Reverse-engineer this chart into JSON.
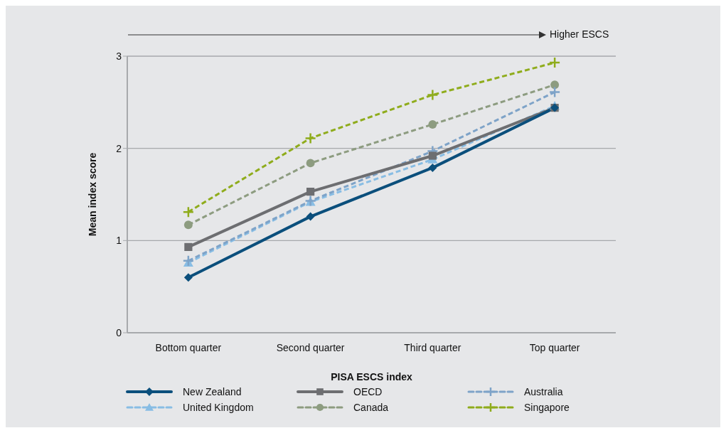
{
  "chart_data": {
    "type": "line",
    "xlabel": "PISA ESCS index",
    "ylabel": "Mean index score",
    "annotations": [
      "Higher ESCS"
    ],
    "categories": [
      "Bottom quarter",
      "Second quarter",
      "Third quarter",
      "Top quarter"
    ],
    "ylim": [
      0,
      3
    ],
    "yticks": [
      0,
      1,
      2,
      3
    ],
    "grid": "y",
    "legend": "bottom",
    "series": [
      {
        "name": "New Zealand",
        "color": "#0b4f7c",
        "marker": "diamond",
        "line_style": "solid",
        "values": [
          0.6,
          1.26,
          1.79,
          2.44
        ]
      },
      {
        "name": "OECD",
        "color": "#6d6e71",
        "marker": "square",
        "line_style": "solid",
        "values": [
          0.93,
          1.53,
          1.92,
          2.44
        ]
      },
      {
        "name": "Australia",
        "color": "#7ea3c8",
        "marker": "cross",
        "line_style": "dashed",
        "values": [
          0.78,
          1.43,
          1.97,
          2.61
        ]
      },
      {
        "name": "United Kingdom",
        "color": "#88bde4",
        "marker": "triangle",
        "line_style": "dashed",
        "values": [
          0.76,
          1.42,
          1.88,
          2.46
        ]
      },
      {
        "name": "Canada",
        "color": "#8d9c80",
        "marker": "circle",
        "line_style": "dashed",
        "values": [
          1.17,
          1.84,
          2.26,
          2.69
        ]
      },
      {
        "name": "Singapore",
        "color": "#8fac1c",
        "marker": "cross",
        "line_style": "dashed",
        "values": [
          1.31,
          2.11,
          2.58,
          2.93
        ]
      }
    ]
  }
}
